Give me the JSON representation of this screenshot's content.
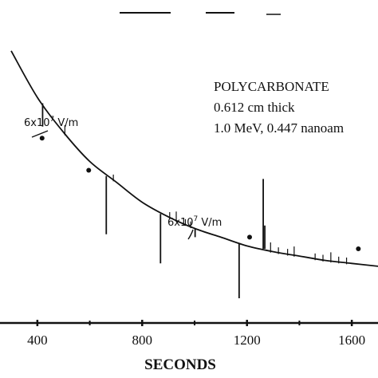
{
  "chart_data": {
    "type": "scatter",
    "title": "",
    "xlabel": "SECONDS",
    "ylabel": "",
    "xlim": [
      300,
      1700
    ],
    "ylim": [
      0,
      100
    ],
    "x_ticks": [
      "400",
      "800",
      "1200",
      "1600"
    ],
    "x_tick_values": [
      400,
      800,
      1200,
      1600
    ],
    "info_lines": [
      "POLYCARBONATE",
      "0.612 cm thick",
      "1.0 MeV, 0.447 nanoam"
    ],
    "series": [
      {
        "style": "curve",
        "x": [
          300,
          400,
          500,
          600,
          700,
          800,
          900,
          1000,
          1100,
          1200,
          1300,
          1400,
          1500,
          1600,
          1700
        ],
        "y": [
          88,
          72,
          60,
          50,
          43,
          36,
          31,
          27,
          24,
          21,
          19,
          17.5,
          16,
          15,
          14
        ]
      },
      {
        "style": "points",
        "x": [
          418,
          596,
          1210,
          1625
        ],
        "y": [
          58,
          47,
          24,
          20
        ]
      },
      {
        "style": "discharges",
        "spikes": [
          {
            "x": 420,
            "top": 70,
            "bottom": 62
          },
          {
            "x": 663,
            "top": 45,
            "bottom": 25
          },
          {
            "x": 870,
            "top": 32,
            "bottom": 15
          },
          {
            "x": 1002,
            "top": 27,
            "bottom": 24
          },
          {
            "x": 1170,
            "top": 22,
            "bottom": 3
          },
          {
            "x": 1262,
            "top": 44,
            "bottom": 20
          },
          {
            "x": 1268,
            "top": 28,
            "bottom": 20
          }
        ]
      }
    ],
    "annotations": [
      {
        "text": "6x10",
        "sup": "7",
        "unit": " V/m",
        "x": 420,
        "y": 70
      },
      {
        "text": "6x10",
        "sup": "7",
        "unit": " V/m",
        "x": 1002,
        "y": 27
      }
    ]
  }
}
